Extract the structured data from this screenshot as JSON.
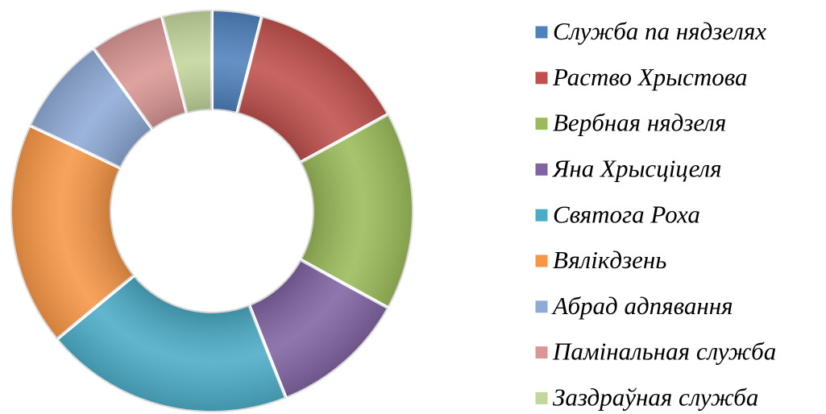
{
  "chart_data": {
    "type": "donut",
    "categories": [
      "Служба па нядзелях",
      "Раство Хрыстова",
      "Вербная нядзеля",
      "Яна Хрысціцеля",
      "Святога Роха",
      "Вялікдзень",
      "Абрад адпявання",
      "Памінальная служба",
      "Заздраўная служба"
    ],
    "values": [
      4,
      13,
      16,
      11,
      20,
      18,
      8,
      6,
      4
    ],
    "colors": [
      "#4f81bd",
      "#c0504d",
      "#9bbb59",
      "#8064a2",
      "#4bacc6",
      "#f79646",
      "#8eaad6",
      "#d99694",
      "#c3d69b"
    ],
    "legend": "right"
  }
}
